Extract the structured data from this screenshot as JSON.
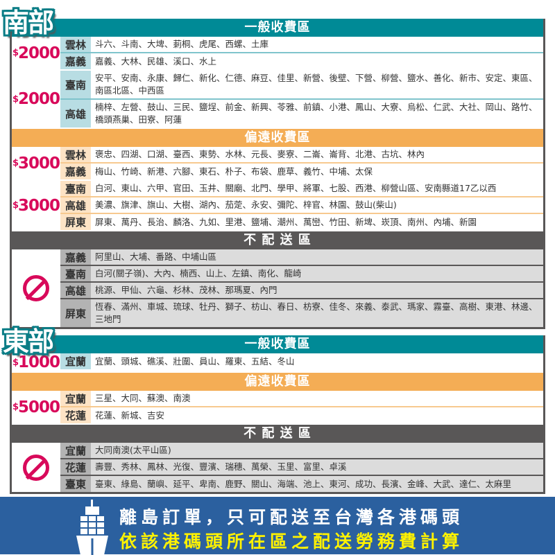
{
  "colors": {
    "general": "#008a96",
    "remote": "#f4ad55",
    "none": "#595757",
    "price": "#d8095a"
  },
  "sections": [
    {
      "label": "南部",
      "blocks": [
        {
          "type": "general",
          "header": "一般收費區",
          "groups": [
            {
              "price": "2000",
              "rows": [
                {
                  "region": "雲林",
                  "towns": "斗六、斗南、大埤、莿桐、虎尾、西螺、土庫"
                },
                {
                  "region": "嘉義",
                  "towns": "嘉義、大林、民雄、溪口、水上"
                }
              ]
            },
            {
              "price": "2000",
              "rows": [
                {
                  "region": "臺南",
                  "towns": "安平、安南、永康、歸仁、新化、仁德、麻豆、佳里、新營、後壁、下營、柳營、鹽水、善化、新市、安定、東區、南區北區、中西區"
                },
                {
                  "region": "高雄",
                  "towns": "楠梓、左營、鼓山、三民、鹽埕、前金、新興、苓雅、前鎮、小港、鳳山、大寮、烏松、仁武、大社、岡山、路竹、橋頭燕巢、田寮、阿蓮"
                }
              ]
            }
          ]
        },
        {
          "type": "remote",
          "header": "偏遠收費區",
          "groups": [
            {
              "price": "3000",
              "rows": [
                {
                  "region": "雲林",
                  "towns": "褒忠、四湖、口湖、臺西、東勢、水林、元長、麥寮、二崙、崙背、北港、古坑、林內"
                },
                {
                  "region": "嘉義",
                  "towns": "梅山、竹崎、新港、六腳、東石、朴子、布袋、鹿草、義竹、中埔、太保"
                }
              ]
            },
            {
              "price": "3000",
              "rows": [
                {
                  "region": "臺南",
                  "towns": "白河、東山、六甲、官田、玉井、關廟、北門、學甲、將軍、七股、西港、柳營山區、安南縣道17乙以西"
                },
                {
                  "region": "高雄",
                  "towns": "美濃、旗津、旗山、大樹、湖內、茄萣、永安、彌陀、梓官、林園、鼓山(柴山)"
                },
                {
                  "region": "屏東",
                  "towns": "屏東、萬丹、長治、麟洛、九如、里港、鹽埔、潮州、萬巒、竹田、新埤、崁頂、南州、內埔、新園"
                }
              ]
            }
          ]
        },
        {
          "type": "none",
          "header": "不 配 送 區",
          "groups": [
            {
              "price": "",
              "icon": "no-delivery-icon",
              "rows": [
                {
                  "region": "嘉義",
                  "towns": "阿里山、大埔、番路、中埔山區"
                },
                {
                  "region": "臺南",
                  "towns": "白河(關子嶺)、大內、楠西、山上、左鎮、南化、龍崎"
                },
                {
                  "region": "高雄",
                  "towns": "桃源、甲仙、六龜、杉林、茂林、那瑪夏、內門"
                },
                {
                  "region": "屏東",
                  "towns": "恆春、滿州、車城、琉球、牡丹、獅子、枋山、春日、枋寮、佳冬、來義、泰武、瑪家、霧臺、高樹、東港、林邊、三地門"
                }
              ]
            }
          ]
        }
      ]
    },
    {
      "label": "東部",
      "blocks": [
        {
          "type": "general",
          "header": "一般收費區",
          "groups": [
            {
              "price": "1000",
              "rows": [
                {
                  "region": "宜蘭",
                  "towns": "宜蘭、頭城、礁溪、壯圍、員山、羅東、五結、冬山"
                }
              ]
            }
          ]
        },
        {
          "type": "remote",
          "header": "偏遠收費區",
          "groups": [
            {
              "price": "5000",
              "rows": [
                {
                  "region": "宜蘭",
                  "towns": "三星、大同、蘇澳、南澳"
                },
                {
                  "region": "花蓮",
                  "towns": "花蓮、新城、吉安"
                }
              ]
            }
          ]
        },
        {
          "type": "none",
          "header": "不 配 送 區",
          "groups": [
            {
              "price": "",
              "icon": "no-delivery-icon",
              "rows": [
                {
                  "region": "宜蘭",
                  "towns": "大同南澳(太平山區)"
                },
                {
                  "region": "花蓮",
                  "towns": "壽豐、秀林、鳳林、光復、豐濱、瑞穗、萬榮、玉里、富里、卓溪"
                },
                {
                  "region": "臺東",
                  "towns": "臺東、綠島、蘭嶼、延平、卑南、鹿野、關山、海端、池上、東河、成功、長濱、金峰、大武、達仁、太麻里"
                }
              ]
            }
          ]
        }
      ]
    }
  ],
  "currency_symbol": "$",
  "banner": {
    "line1": "離島訂單，只可配送至台灣各港碼頭",
    "line2": "依該港碼頭所在區之配送勞務費計算",
    "icon": "ship-icon"
  }
}
